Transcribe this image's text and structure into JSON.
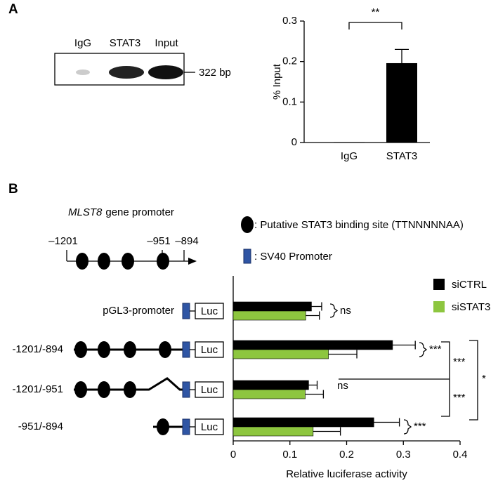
{
  "panel_labels": [
    "A",
    "B"
  ],
  "gel": {
    "lanes": [
      "IgG",
      "STAT3",
      "Input"
    ],
    "size_label": "322 bp"
  },
  "promoter_diagram": {
    "gene": "MLST8",
    "title_rest": "gene promoter",
    "positions": [
      "–1201",
      "–951",
      "–894"
    ],
    "legend": [
      ": Putative STAT3 binding site (TTNNNNNAA)",
      ": SV40 Promoter"
    ],
    "reporter": "Luc"
  },
  "chart_data": [
    {
      "type": "bar",
      "categories": [
        "IgG",
        "STAT3"
      ],
      "values": [
        0.001,
        0.196
      ],
      "errors": [
        0,
        0.034
      ],
      "color": "#000000",
      "ylabel": "% Input",
      "ylim": [
        0,
        0.3
      ],
      "yticks": [
        0,
        0.1,
        0.2,
        0.3
      ],
      "annotations": [
        "**"
      ]
    },
    {
      "type": "hbar",
      "categories": [
        "pGL3-promoter",
        "-1201/-894",
        "-1201/-951",
        "-951/-894"
      ],
      "series": [
        {
          "name": "siCTRL",
          "color": "#000000",
          "values": [
            0.138,
            0.281,
            0.133,
            0.248
          ],
          "errors": [
            0.018,
            0.04,
            0.015,
            0.045
          ]
        },
        {
          "name": "siSTAT3",
          "color": "#8dc63f",
          "values": [
            0.128,
            0.168,
            0.127,
            0.141
          ],
          "errors": [
            0.024,
            0.05,
            0.032,
            0.048
          ]
        }
      ],
      "xlabel": "Relative luciferase activity",
      "xlim": [
        0,
        0.4
      ],
      "xticks": [
        0,
        0.1,
        0.2,
        0.3,
        0.4
      ],
      "annotations": [
        "ns",
        "***",
        "ns",
        "***",
        "***",
        "***",
        "*"
      ]
    }
  ]
}
